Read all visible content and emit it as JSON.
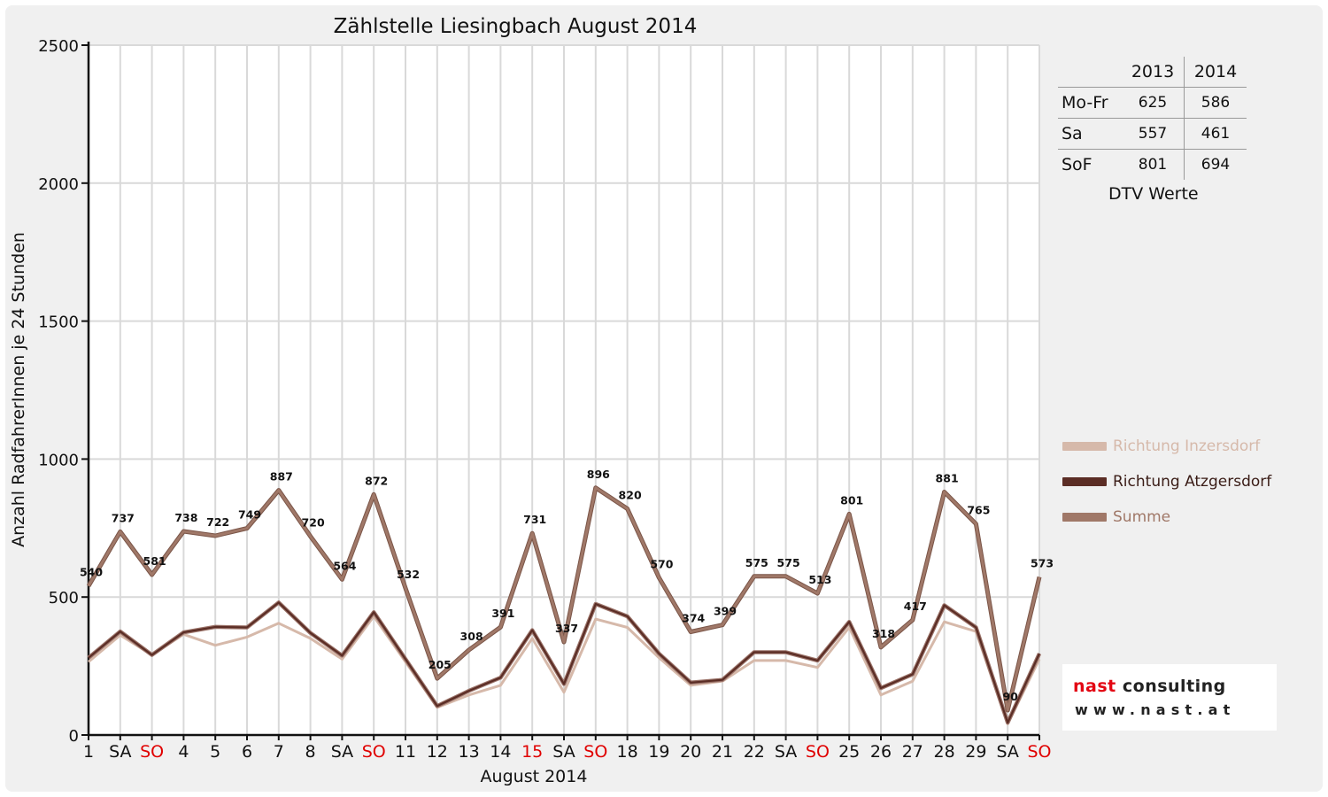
{
  "chart_data": {
    "type": "line",
    "title": "Zählstelle Liesingbach August 2014",
    "xlabel": "August 2014",
    "ylabel": "Anzahl RadfahrerInnen je 24 Stunden",
    "ylim": [
      0,
      2500
    ],
    "yticks": [
      "0",
      "500",
      "1000",
      "1500",
      "2000",
      "2500"
    ],
    "grid": true,
    "legend_position": "right",
    "categories": [
      "1",
      "SA",
      "SO",
      "4",
      "5",
      "6",
      "7",
      "8",
      "SA",
      "SO",
      "11",
      "12",
      "13",
      "14",
      "15",
      "SA",
      "SO",
      "18",
      "19",
      "20",
      "21",
      "22",
      "SA",
      "SO",
      "25",
      "26",
      "27",
      "28",
      "29",
      "SA",
      "SO"
    ],
    "category_colors": [
      "#111111",
      "#111111",
      "#e00000",
      "#111111",
      "#111111",
      "#111111",
      "#111111",
      "#111111",
      "#111111",
      "#e00000",
      "#111111",
      "#111111",
      "#111111",
      "#111111",
      "#e00000",
      "#111111",
      "#e00000",
      "#111111",
      "#111111",
      "#111111",
      "#111111",
      "#111111",
      "#111111",
      "#e00000",
      "#111111",
      "#111111",
      "#111111",
      "#111111",
      "#111111",
      "#111111",
      "#e00000"
    ],
    "series": [
      {
        "name": "Richtung Inzersdorf",
        "color": "#d6b9aa",
        "values": [
          265,
          362,
          290,
          365,
          325,
          355,
          405,
          350,
          275,
          430,
          265,
          100,
          145,
          180,
          350,
          155,
          420,
          390,
          280,
          180,
          195,
          270,
          270,
          245,
          390,
          145,
          195,
          410,
          375,
          40,
          275
        ]
      },
      {
        "name": "Richtung Atzgersdorf",
        "color": "#5b2d25",
        "values": [
          280,
          375,
          290,
          372,
          392,
          390,
          480,
          370,
          288,
          445,
          275,
          105,
          160,
          208,
          380,
          185,
          475,
          430,
          295,
          190,
          200,
          300,
          300,
          270,
          410,
          170,
          220,
          470,
          390,
          45,
          295
        ]
      },
      {
        "name": "Summe",
        "color": "#a07868",
        "values": [
          540,
          737,
          581,
          738,
          722,
          749,
          887,
          720,
          564,
          872,
          532,
          205,
          308,
          391,
          731,
          337,
          896,
          820,
          570,
          374,
          399,
          575,
          575,
          513,
          801,
          318,
          417,
          881,
          765,
          90,
          573
        ]
      }
    ],
    "data_labels": [
      "540",
      "737",
      "581",
      "738",
      "722",
      "749",
      "887",
      "720",
      "564",
      "872",
      "532",
      "205",
      "308",
      "391",
      "731",
      "337",
      "896",
      "820",
      "570",
      "374",
      "399",
      "575",
      "575",
      "513",
      "801",
      "318",
      "417",
      "881",
      "765",
      "90",
      "573"
    ]
  },
  "dtv_table": {
    "col_headers": [
      "2013",
      "2014"
    ],
    "rows": [
      {
        "label": "Mo-Fr",
        "v2013": "625",
        "v2014": "586"
      },
      {
        "label": "Sa",
        "v2013": "557",
        "v2014": "461"
      },
      {
        "label": "SoF",
        "v2013": "801",
        "v2014": "694"
      }
    ],
    "caption": "DTV Werte"
  },
  "logo": {
    "brand_red": "nast",
    "brand_dark": "consulting",
    "url": "www.nast.at"
  }
}
